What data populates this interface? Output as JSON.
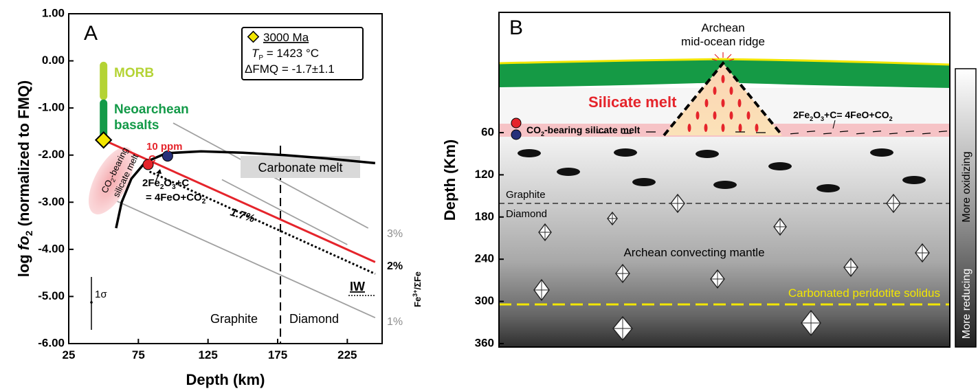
{
  "chart_data": [
    {
      "panel": "A",
      "type": "line",
      "xlabel": "Depth (km)",
      "ylabel": "log fo2 (normalized to FMQ)",
      "ylabel_parts": [
        "log ",
        "fo",
        "2",
        " (normalized to FMQ)"
      ],
      "xlim": [
        25,
        250
      ],
      "ylim": [
        -6,
        1
      ],
      "x_ticks": [
        25,
        75,
        125,
        175,
        225
      ],
      "y_ticks": [
        1,
        0,
        -1,
        -2,
        -3,
        -4,
        -5,
        -6
      ],
      "y_tick_labels": [
        "1.00",
        "0.00",
        "-1.00",
        "-2.00",
        "-3.00",
        "-4.00",
        "-5.00",
        "-6.00"
      ],
      "series": [
        {
          "role": "carbonate-melt-boundary",
          "color": "#000000",
          "x": [
            59,
            63,
            70,
            80,
            95,
            120,
            150,
            180,
            210,
            245
          ],
          "y": [
            -3.55,
            -3.0,
            -2.5,
            -2.15,
            -1.96,
            -1.92,
            -1.95,
            -2.0,
            -2.07,
            -2.17
          ]
        },
        {
          "role": "redox-path-red",
          "color": "#e5242b",
          "x": [
            50,
            245
          ],
          "y": [
            -1.68,
            -4.27
          ]
        },
        {
          "role": "redox-path-dotted",
          "color": "#000000",
          "x": [
            83,
            245
          ],
          "y": [
            -2.35,
            -4.52
          ]
        },
        {
          "role": "Fe3-3pct",
          "color": "#a0a0a0",
          "x": [
            100,
            240
          ],
          "y": [
            -1.32,
            -3.55
          ]
        },
        {
          "role": "Fe3-2pct",
          "color": "#a0a0a0",
          "x": [
            135,
            225
          ],
          "y": [
            -2.52,
            -3.9
          ]
        },
        {
          "role": "Fe3-1pct",
          "color": "#a0a0a0",
          "x": [
            50,
            245
          ],
          "y": [
            -2.85,
            -5.45
          ]
        }
      ],
      "graphite_diamond_depth": 177,
      "legend_box": {
        "age": "3000 Ma",
        "tp_label": "T",
        "tp_sub": "P",
        "tp_value": " = 1423 °C",
        "dfmq": "ΔFMQ = -1.7±1.1"
      },
      "legend_marker_color": "#f2e600",
      "bars": [
        {
          "label": "MORB",
          "color": "#b4d334",
          "x": 50,
          "y_top": -0.1,
          "y_bottom": -0.75
        },
        {
          "label_lines": [
            "Neoarchean",
            "basalts"
          ],
          "color": "#139a48",
          "x": 50,
          "y_top": -0.9,
          "y_bottom": -1.55
        }
      ],
      "diamond_marker": {
        "x": 50,
        "y": -1.68
      },
      "points": [
        {
          "role": "red-point",
          "color": "#e5242b",
          "x": 82,
          "y": -2.2
        },
        {
          "role": "blue-point",
          "color": "#27307a",
          "x": 96,
          "y": -2.02
        }
      ],
      "annotations": {
        "panel": "A",
        "carbonate_melt": "Carbonate melt",
        "ppm": "10 ppm",
        "c": "C",
        "reaction_1": "2Fe2O3+C",
        "reaction_2": "= 4FeO+CO2",
        "pct_dotted": "1.7%",
        "graphite": "Graphite",
        "diamond": "Diamond",
        "iw": "IW",
        "sigma": "1σ",
        "co2_blob_1": "CO2-bearing",
        "co2_blob_2": "silicate melt"
      },
      "right_labels": [
        "3%",
        "2%",
        "1%"
      ],
      "right_axis_label": "Fe3+/ΣFe"
    },
    {
      "panel": "B",
      "type": "diagram",
      "ylabel": "Depth (Km)",
      "ylim": [
        360,
        0
      ],
      "y_ticks": [
        60,
        120,
        180,
        240,
        300,
        360
      ],
      "labels": {
        "panel": "B",
        "ridge_1": "Archean",
        "ridge_2": "mid-ocean ridge",
        "silicate_melt": "Silicate melt",
        "co2_melt": "CO2-bearing silicate melt",
        "reaction": "2Fe2O3+C= 4FeO+CO2",
        "graphite": "Graphite",
        "diamond": "Diamond",
        "mantle": "Archean convecting mantle",
        "solidus": "Carbonated peridotite solidus",
        "more_oxidizing": "More oxidizing",
        "more_reducing": "More reducing"
      },
      "colors": {
        "crust": "#159a45",
        "solidus": "#f2e600",
        "melt": "#e5242b"
      }
    }
  ]
}
